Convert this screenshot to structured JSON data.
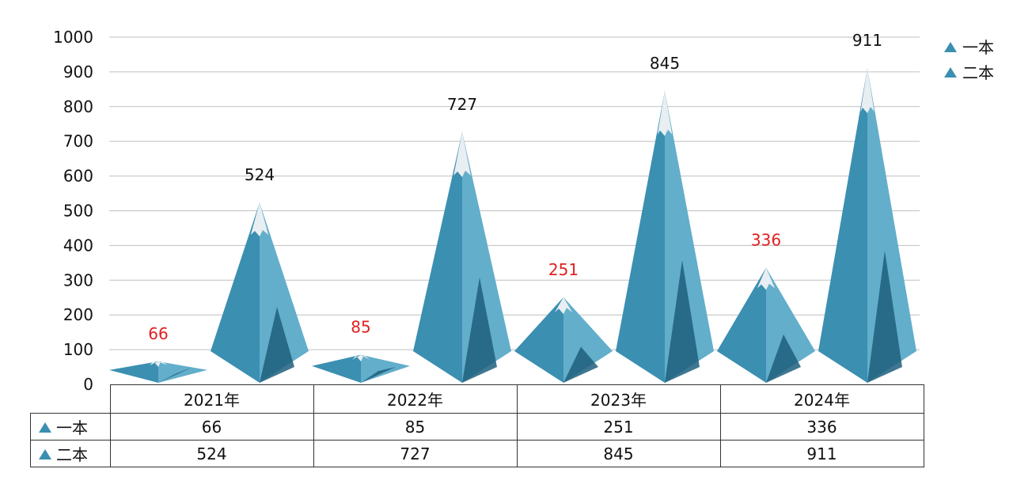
{
  "chart_data": {
    "type": "bar",
    "style": "pyramid",
    "categories": [
      "2021年",
      "2022年",
      "2023年",
      "2024年"
    ],
    "series": [
      {
        "name": "一本",
        "values": [
          66,
          85,
          251,
          336
        ],
        "label_color": "#e02020"
      },
      {
        "name": "二本",
        "values": [
          524,
          727,
          845,
          911
        ],
        "label_color": "#111111"
      }
    ],
    "ylim": [
      0,
      1000
    ],
    "yticks": [
      "0",
      "100",
      "200",
      "300",
      "400",
      "500",
      "600",
      "700",
      "800",
      "900",
      "1000"
    ],
    "grid": true,
    "legend": "top-right",
    "data_table": true
  },
  "colors": {
    "mountain": "#3b8fb1",
    "mountain_light": "#62aecb",
    "shadow": "#1f5f7c",
    "snow": "#e8eef1",
    "grid": "#bfbfbf"
  }
}
